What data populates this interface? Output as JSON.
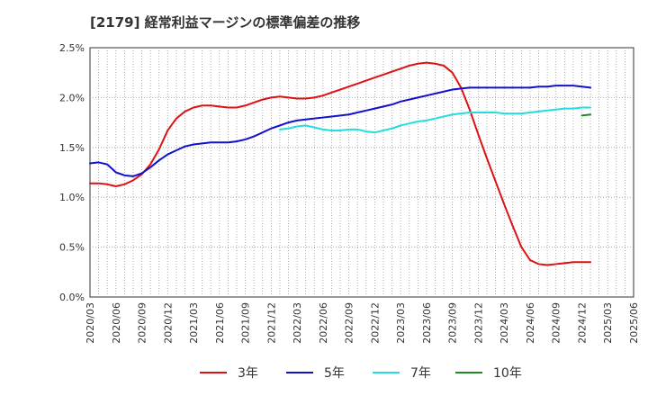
{
  "chart_data": {
    "type": "line",
    "title": "[2179]  経常利益マージンの標準偏差の推移",
    "xlabel": "",
    "ylabel": "",
    "x_ticks": [
      "2020/03",
      "2020/06",
      "2020/09",
      "2020/12",
      "2021/03",
      "2021/06",
      "2021/09",
      "2021/12",
      "2022/03",
      "2022/06",
      "2022/09",
      "2022/12",
      "2023/03",
      "2023/06",
      "2023/09",
      "2023/12",
      "2024/03",
      "2024/06",
      "2024/09",
      "2024/12",
      "2025/03",
      "2025/06"
    ],
    "y_ticks": [
      "0.0%",
      "0.5%",
      "1.0%",
      "1.5%",
      "2.0%",
      "2.5%"
    ],
    "ylim": [
      0,
      2.5
    ],
    "grid": true,
    "legend_position": "bottom",
    "series": [
      {
        "name": "3年",
        "color": "#dd1111",
        "start_index": 0,
        "values": [
          1.14,
          1.14,
          1.13,
          1.11,
          1.13,
          1.17,
          1.23,
          1.33,
          1.48,
          1.67,
          1.79,
          1.86,
          1.9,
          1.92,
          1.92,
          1.91,
          1.9,
          1.9,
          1.92,
          1.95,
          1.98,
          2.0,
          2.01,
          2.0,
          1.99,
          1.99,
          2.0,
          2.02,
          2.05,
          2.08,
          2.11,
          2.14,
          2.17,
          2.2,
          2.23,
          2.26,
          2.29,
          2.32,
          2.34,
          2.35,
          2.34,
          2.32,
          2.25,
          2.1,
          1.88,
          1.63,
          1.39,
          1.16,
          0.93,
          0.71,
          0.5,
          0.37,
          0.33,
          0.32,
          0.33,
          0.34,
          0.35,
          0.35,
          0.35
        ]
      },
      {
        "name": "5年",
        "color": "#1111cc",
        "start_index": 0,
        "values": [
          1.34,
          1.35,
          1.33,
          1.25,
          1.22,
          1.21,
          1.24,
          1.3,
          1.37,
          1.43,
          1.47,
          1.51,
          1.53,
          1.54,
          1.55,
          1.55,
          1.55,
          1.56,
          1.58,
          1.61,
          1.65,
          1.69,
          1.72,
          1.75,
          1.77,
          1.78,
          1.79,
          1.8,
          1.81,
          1.82,
          1.83,
          1.85,
          1.87,
          1.89,
          1.91,
          1.93,
          1.96,
          1.98,
          2.0,
          2.02,
          2.04,
          2.06,
          2.08,
          2.09,
          2.1,
          2.1,
          2.1,
          2.1,
          2.1,
          2.1,
          2.1,
          2.1,
          2.11,
          2.11,
          2.12,
          2.12,
          2.12,
          2.11,
          2.1
        ]
      },
      {
        "name": "7年",
        "color": "#22dddd",
        "start_index": 22,
        "values": [
          1.68,
          1.69,
          1.71,
          1.72,
          1.7,
          1.68,
          1.67,
          1.67,
          1.68,
          1.68,
          1.66,
          1.65,
          1.67,
          1.69,
          1.72,
          1.74,
          1.76,
          1.77,
          1.79,
          1.81,
          1.83,
          1.84,
          1.85,
          1.85,
          1.85,
          1.85,
          1.84,
          1.84,
          1.84,
          1.85,
          1.86,
          1.87,
          1.88,
          1.89,
          1.89,
          1.9,
          1.9
        ]
      },
      {
        "name": "10年",
        "color": "#228822",
        "start_index": 57,
        "values": [
          1.82,
          1.83
        ]
      }
    ]
  }
}
